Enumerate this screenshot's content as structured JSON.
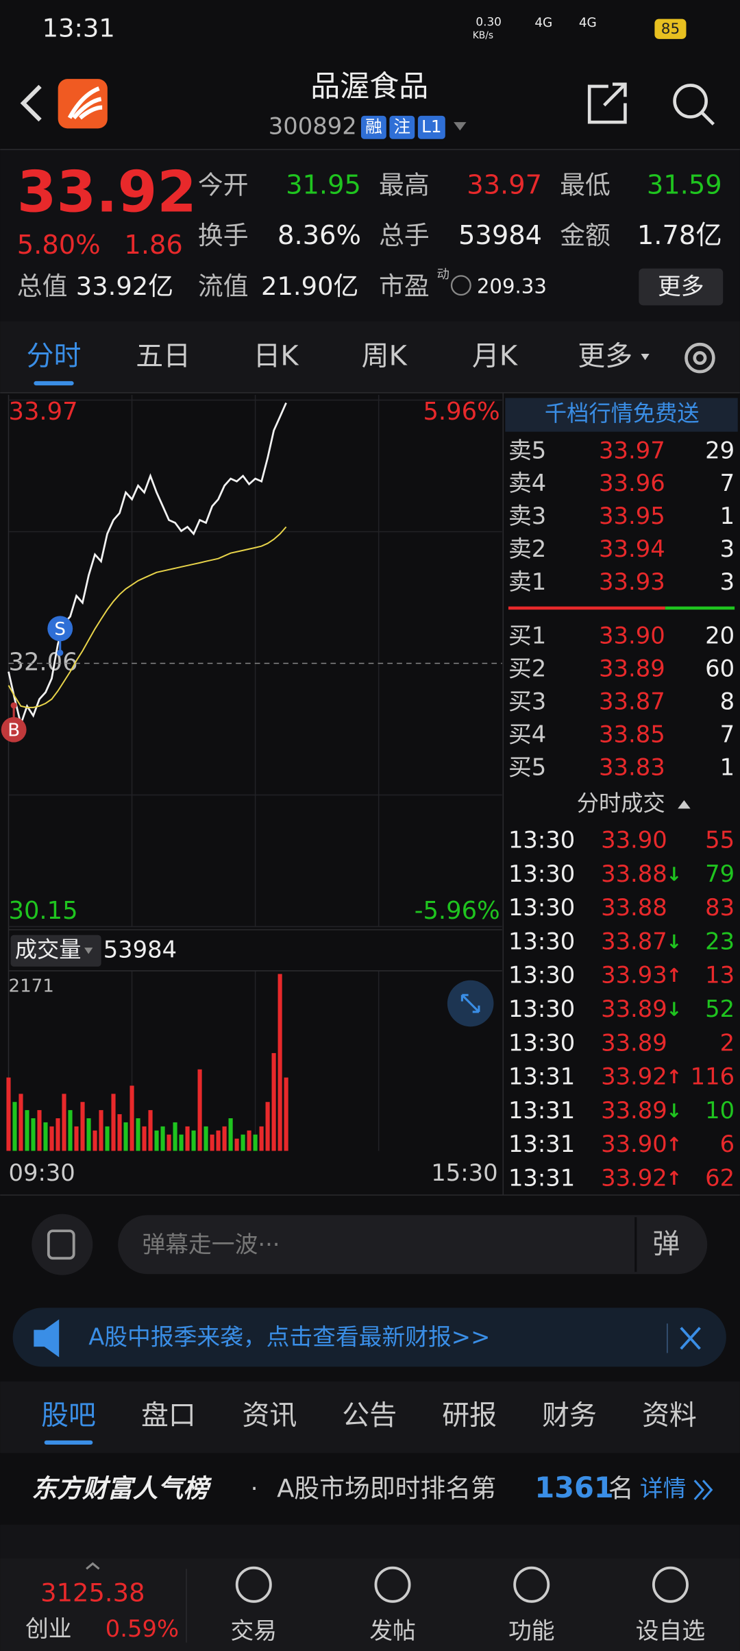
{
  "status_bar": {
    "time": "13:31",
    "net_speed": "0.30",
    "net_unit": "KB/s",
    "signal_1": "4G",
    "signal_2": "4G",
    "battery": "85"
  },
  "header": {
    "title": "品渥食品",
    "code": "300892",
    "tags": [
      "融",
      "注",
      "L1"
    ]
  },
  "quote": {
    "price": "33.92",
    "change_percent": "5.80%",
    "change": "1.86",
    "fields": [
      {
        "label": "今开",
        "value": "31.95",
        "color": "#1fc41f"
      },
      {
        "label": "最高",
        "value": "33.97",
        "color": "#e8292b"
      },
      {
        "label": "最低",
        "value": "31.59",
        "color": "#1fc41f"
      },
      {
        "label": "换手",
        "value": "8.36%",
        "color": "#eeeeee"
      },
      {
        "label": "总手",
        "value": "53984",
        "color": "#eeeeee"
      },
      {
        "label": "金额",
        "value": "1.78亿",
        "color": "#eeeeee"
      }
    ],
    "market_cap": {
      "label": "总值",
      "value": "33.92亿"
    },
    "float_cap": {
      "label": "流值",
      "value": "21.90亿"
    },
    "pe": {
      "label": "市盈",
      "tag": "动",
      "value": "209.33"
    },
    "more": "更多"
  },
  "tabs": {
    "items": [
      "分时",
      "五日",
      "日K",
      "周K",
      "月K",
      "更多"
    ],
    "selected": 0
  },
  "chart_data": [
    {
      "type": "line",
      "ylim": [
        30.15,
        33.97
      ],
      "yticks": [
        33.97,
        32.06,
        30.15
      ],
      "y2lim": [
        -5.96,
        5.96
      ],
      "y2ticks": [
        {
          "value": 5.96,
          "label": "5.96%"
        },
        {
          "value": -5.96,
          "label": "-5.96%"
        }
      ],
      "xtick_labels": [
        "09:30",
        "15:30"
      ],
      "series": [
        {
          "color": "#f2f2f2",
          "values": [
            32.0,
            31.8,
            31.62,
            31.75,
            31.68,
            31.8,
            31.85,
            31.95,
            32.2,
            32.35,
            32.4,
            32.55,
            32.5,
            32.7,
            32.85,
            32.8,
            33.0,
            33.1,
            33.15,
            33.3,
            33.25,
            33.35,
            33.3,
            33.42,
            33.3,
            33.2,
            33.1,
            33.08,
            33.02,
            33.05,
            33.0,
            33.1,
            33.08,
            33.2,
            33.25,
            33.35,
            33.4,
            33.38,
            33.42,
            33.36,
            33.4,
            33.38,
            33.55,
            33.75,
            33.85,
            33.95
          ]
        },
        {
          "color": "#e8d44a",
          "values": [
            31.9,
            31.82,
            31.75,
            31.74,
            31.74,
            31.75,
            31.77,
            31.8,
            31.86,
            31.93,
            32.0,
            32.08,
            32.15,
            32.23,
            32.31,
            32.38,
            32.45,
            32.51,
            32.56,
            32.6,
            32.63,
            32.66,
            32.68,
            32.7,
            32.72,
            32.73,
            32.74,
            32.75,
            32.76,
            32.77,
            32.78,
            32.79,
            32.8,
            32.81,
            32.82,
            32.84,
            32.86,
            32.87,
            32.88,
            32.89,
            32.9,
            32.91,
            32.93,
            32.96,
            33.0,
            33.05
          ]
        }
      ],
      "trade_markers": [
        "B",
        "S"
      ]
    },
    {
      "type": "bar",
      "label": "成交量",
      "total": "53984",
      "ylim": [
        0,
        2171
      ],
      "yticks": [
        2171
      ],
      "values": [
        900,
        600,
        700,
        500,
        400,
        500,
        350,
        300,
        400,
        700,
        500,
        300,
        600,
        400,
        250,
        500,
        300,
        700,
        450,
        350,
        800,
        400,
        300,
        500,
        250,
        300,
        200,
        350,
        200,
        300,
        250,
        1000,
        300,
        200,
        250,
        300,
        400,
        150,
        200,
        250,
        200,
        300,
        600,
        1200,
        2171,
        900
      ],
      "colors": [
        "#e8292b",
        "#1fc41f",
        "#e8292b",
        "#1fc41f",
        "#1fc41f",
        "#e8292b",
        "#1fc41f",
        "#e8292b",
        "#e8292b",
        "#e8292b",
        "#1fc41f",
        "#e8292b",
        "#e8292b",
        "#1fc41f",
        "#e8292b",
        "#e8292b",
        "#1fc41f",
        "#e8292b",
        "#e8292b",
        "#1fc41f",
        "#e8292b",
        "#1fc41f",
        "#e8292b",
        "#e8292b",
        "#1fc41f",
        "#1fc41f",
        "#e8292b",
        "#1fc41f",
        "#1fc41f",
        "#e8292b",
        "#1fc41f",
        "#e8292b",
        "#1fc41f",
        "#e8292b",
        "#e8292b",
        "#e8292b",
        "#1fc41f",
        "#e8292b",
        "#1fc41f",
        "#e8292b",
        "#1fc41f",
        "#e8292b",
        "#e8292b",
        "#e8292b",
        "#e8292b",
        "#e8292b"
      ]
    }
  ],
  "order_book": {
    "title": "千档行情免费送",
    "asks": [
      {
        "label": "卖5",
        "price": "33.97",
        "volume": "29"
      },
      {
        "label": "卖4",
        "price": "33.96",
        "volume": "7"
      },
      {
        "label": "卖3",
        "price": "33.95",
        "volume": "1"
      },
      {
        "label": "卖2",
        "price": "33.94",
        "volume": "3"
      },
      {
        "label": "卖1",
        "price": "33.93",
        "volume": "3"
      }
    ],
    "bids": [
      {
        "label": "买1",
        "price": "33.90",
        "volume": "20"
      },
      {
        "label": "买2",
        "price": "33.89",
        "volume": "60"
      },
      {
        "label": "买3",
        "price": "33.87",
        "volume": "8"
      },
      {
        "label": "买4",
        "price": "33.85",
        "volume": "7"
      },
      {
        "label": "买5",
        "price": "33.83",
        "volume": "1"
      }
    ]
  },
  "trades": {
    "title": "分时成交",
    "rows": [
      {
        "time": "13:30",
        "price": "33.90",
        "volume": "55",
        "volume_color": "#e8292b"
      },
      {
        "time": "13:30",
        "price": "33.88",
        "direction": "↓",
        "volume": "79",
        "volume_color": "#1fc41f"
      },
      {
        "time": "13:30",
        "price": "33.88",
        "volume": "83",
        "volume_color": "#e8292b"
      },
      {
        "time": "13:30",
        "price": "33.87",
        "direction": "↓",
        "volume": "23",
        "volume_color": "#1fc41f"
      },
      {
        "time": "13:30",
        "price": "33.93",
        "direction": "↑",
        "volume": "13",
        "volume_color": "#e8292b"
      },
      {
        "time": "13:30",
        "price": "33.89",
        "direction": "↓",
        "volume": "52",
        "volume_color": "#1fc41f"
      },
      {
        "time": "13:30",
        "price": "33.89",
        "volume": "2",
        "volume_color": "#e8292b"
      },
      {
        "time": "13:31",
        "price": "33.92",
        "direction": "↑",
        "volume": "116",
        "volume_color": "#e8292b"
      },
      {
        "time": "13:31",
        "price": "33.89",
        "direction": "↓",
        "volume": "10",
        "volume_color": "#1fc41f"
      },
      {
        "time": "13:31",
        "price": "33.90",
        "direction": "↑",
        "volume": "6",
        "volume_color": "#e8292b"
      },
      {
        "time": "13:31",
        "price": "33.92",
        "direction": "↑",
        "volume": "62",
        "volume_color": "#e8292b"
      }
    ]
  },
  "comment": {
    "placeholder": "弹幕走一波···",
    "button": "弹"
  },
  "banner": {
    "text": "A股中报季来袭，点击查看最新财报>>"
  },
  "sections": {
    "items": [
      "股吧",
      "盘口",
      "资讯",
      "公告",
      "研报",
      "财务",
      "资料"
    ],
    "selected": 0
  },
  "ranking": {
    "title": "东方财富人气榜",
    "separator": "·",
    "text": "A股市场即时排名第",
    "rank": "1361",
    "suffix": "名",
    "link": "详情"
  },
  "bottom_nav": {
    "index_value": "3125.38",
    "index_name": "创业",
    "index_change": "0.59%",
    "items": [
      "交易",
      "发帖",
      "功能",
      "设自选"
    ]
  }
}
